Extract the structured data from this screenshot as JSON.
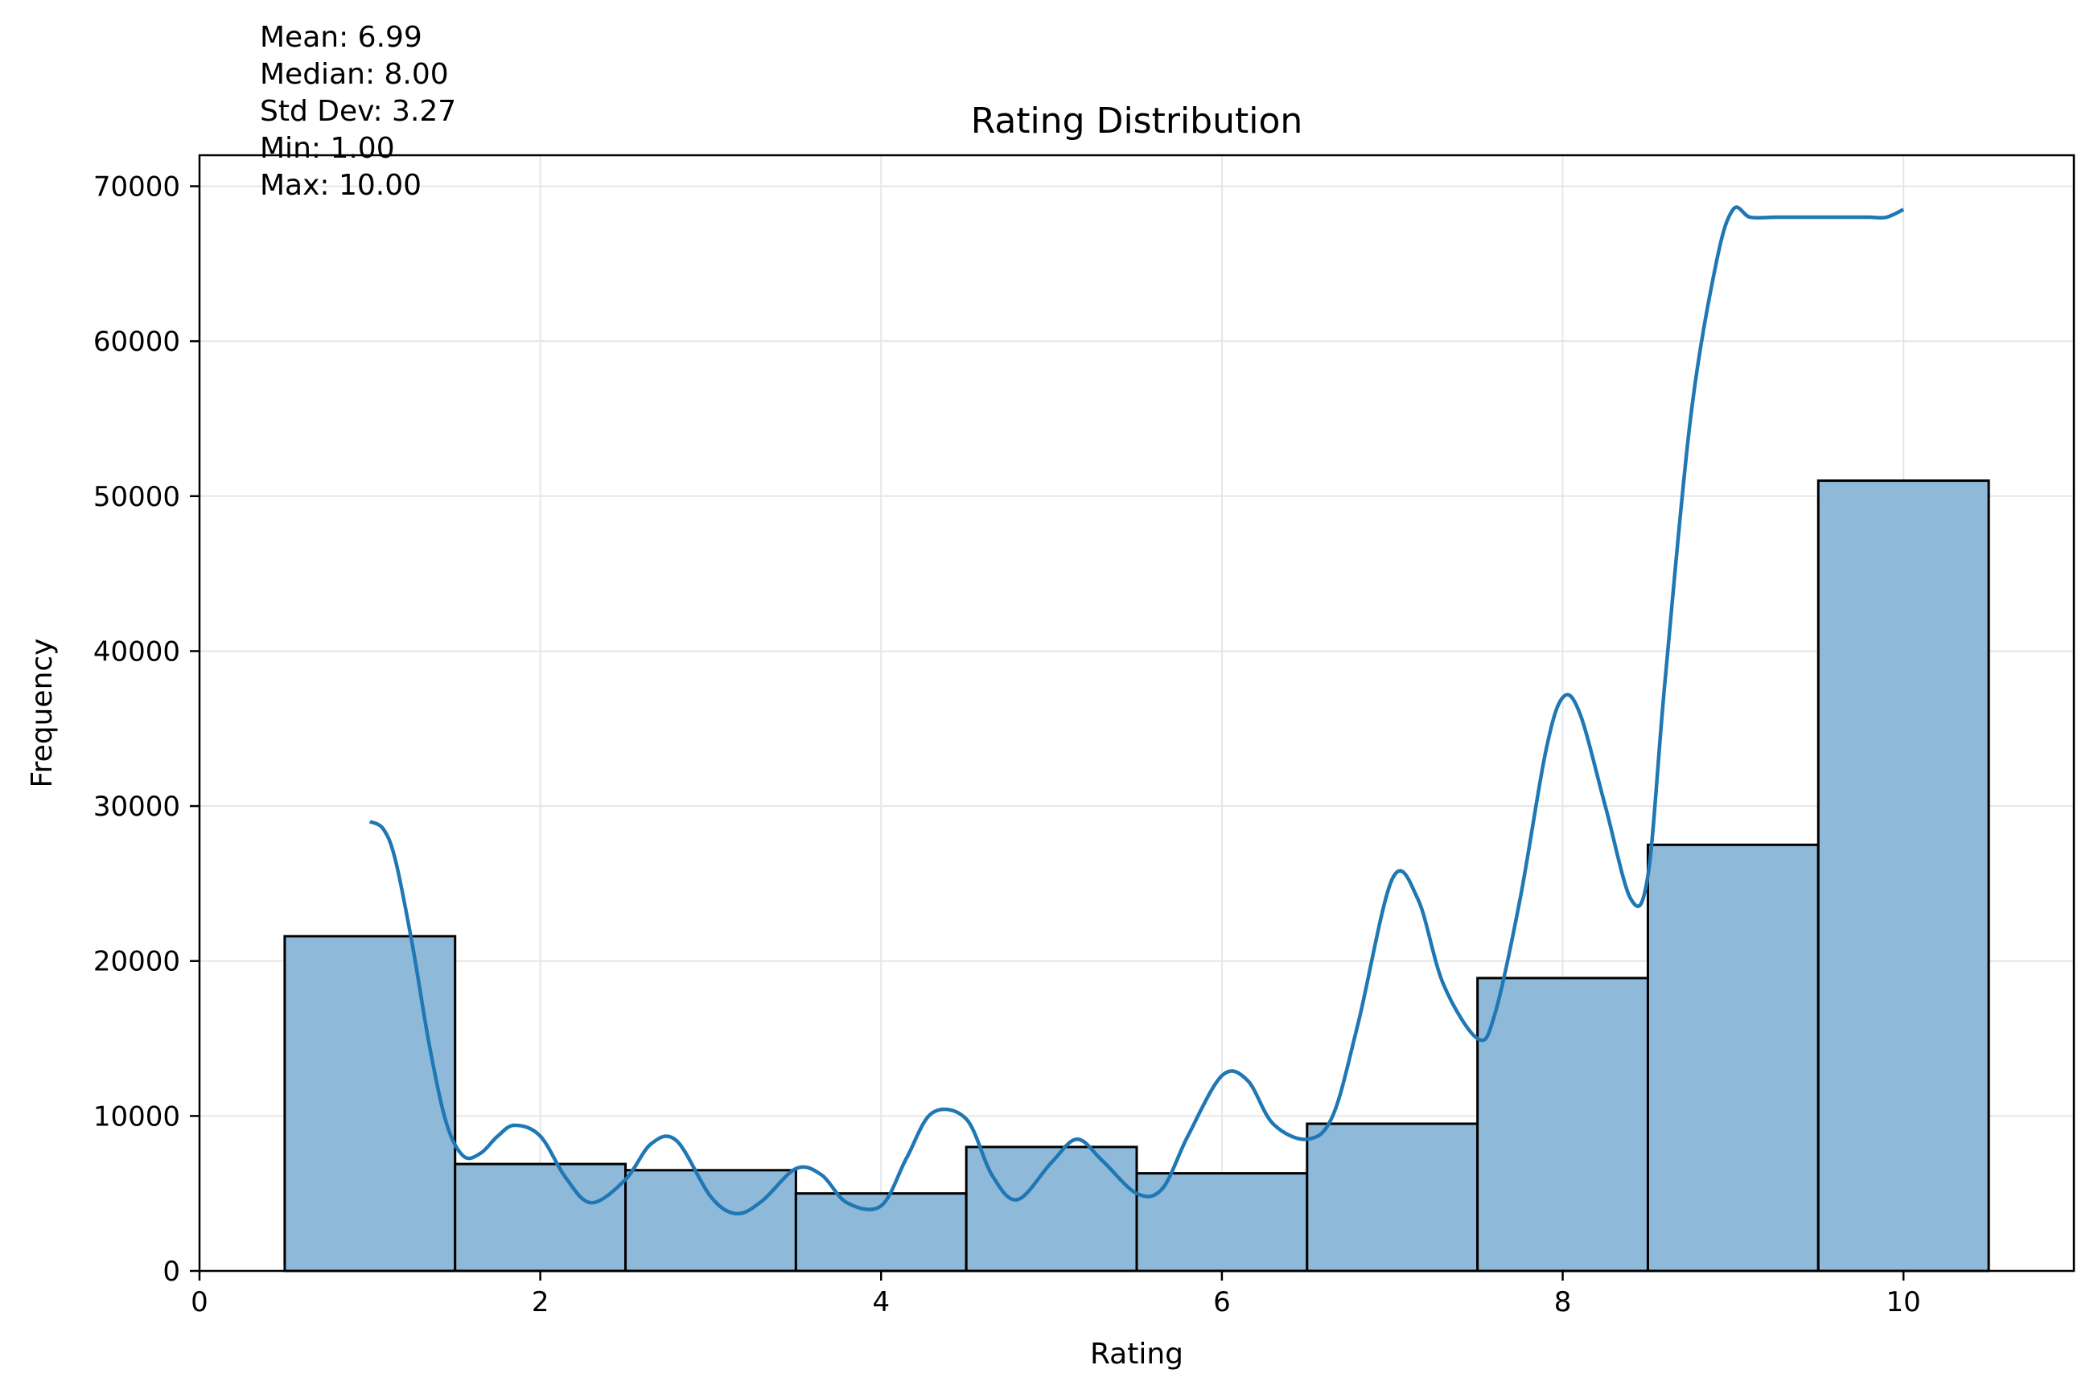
{
  "chart_data": {
    "type": "bar",
    "title": "Rating Distribution",
    "xlabel": "Rating",
    "ylabel": "Frequency",
    "xlim": [
      0,
      11
    ],
    "ylim": [
      0,
      72000
    ],
    "x_ticks": [
      0,
      2,
      4,
      6,
      8,
      10
    ],
    "y_ticks": [
      0,
      10000,
      20000,
      30000,
      40000,
      50000,
      60000,
      70000
    ],
    "grid": true,
    "bins": [
      {
        "x0": 0.5,
        "x1": 1.5,
        "value": 21600
      },
      {
        "x0": 1.5,
        "x1": 2.5,
        "value": 6900
      },
      {
        "x0": 2.5,
        "x1": 3.5,
        "value": 6500
      },
      {
        "x0": 3.5,
        "x1": 4.5,
        "value": 5000
      },
      {
        "x0": 4.5,
        "x1": 5.5,
        "value": 8000
      },
      {
        "x0": 5.5,
        "x1": 6.5,
        "value": 6300
      },
      {
        "x0": 6.5,
        "x1": 7.5,
        "value": 9500
      },
      {
        "x0": 7.5,
        "x1": 8.5,
        "value": 18900
      },
      {
        "x0": 8.5,
        "x1": 9.5,
        "value": 27500
      },
      {
        "x0": 9.5,
        "x1": 10.5,
        "value": 51000
      }
    ],
    "kde": {
      "x": [
        1.0,
        1.08,
        1.15,
        1.25,
        1.35,
        1.45,
        1.55,
        1.65,
        1.75,
        1.85,
        2.0,
        2.15,
        2.3,
        2.5,
        2.65,
        2.8,
        3.0,
        3.15,
        3.3,
        3.5,
        3.65,
        3.8,
        4.0,
        4.15,
        4.3,
        4.5,
        4.65,
        4.8,
        5.0,
        5.15,
        5.3,
        5.5,
        5.65,
        5.8,
        6.0,
        6.15,
        6.3,
        6.5,
        6.65,
        6.8,
        7.0,
        7.15,
        7.3,
        7.5,
        7.6,
        7.75,
        7.9,
        8.0,
        8.1,
        8.25,
        8.4,
        8.5,
        8.6,
        8.75,
        8.9,
        9.0,
        9.1,
        9.25,
        9.4,
        9.5,
        9.6,
        9.7,
        9.8,
        9.9,
        10.0
      ],
      "y": [
        29000,
        28500,
        26500,
        21000,
        14500,
        9500,
        7400,
        7600,
        8700,
        9400,
        8700,
        6000,
        4400,
        5900,
        8200,
        8400,
        4800,
        3700,
        4500,
        6600,
        6200,
        4400,
        4200,
        7300,
        10200,
        9800,
        6200,
        4600,
        7000,
        8500,
        7100,
        5000,
        5300,
        8700,
        12600,
        12300,
        9500,
        8500,
        10000,
        16000,
        25300,
        24000,
        18500,
        15000,
        16500,
        24000,
        33500,
        37000,
        36000,
        30000,
        24000,
        25500,
        38000,
        55000,
        65000,
        68500,
        68000,
        68000,
        68000,
        68000,
        68000,
        68000,
        68000,
        68000,
        68500
      ],
      "color": "#1f77b4"
    },
    "bar_fill": "#8fb9d9",
    "bar_edge": "#000000",
    "stats": [
      "Mean: 6.99",
      "Median: 8.00",
      "Std Dev: 3.27",
      "Min: 1.00",
      "Max: 10.00"
    ]
  }
}
